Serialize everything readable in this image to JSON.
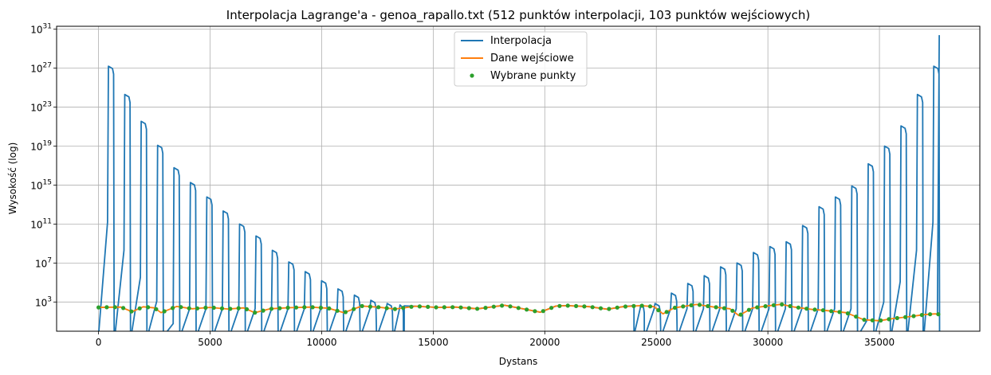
{
  "chart_data": {
    "type": "line",
    "title": "Interpolacja Lagrange'a - genoa_rapallo.txt (512 punktów interpolacji, 103 punktów wejściowych)",
    "xlabel": "Dystans",
    "ylabel": "Wysokość (log)",
    "y_scale": "log",
    "xlim": [
      -1880,
      39500
    ],
    "ylim": [
      1,
      2e+31
    ],
    "x_ticks": [
      0,
      5000,
      10000,
      15000,
      20000,
      25000,
      30000,
      35000
    ],
    "y_ticks": [
      {
        "value": 1000,
        "base": "10",
        "exp": "3"
      },
      {
        "value": 10000000.0,
        "base": "10",
        "exp": "7"
      },
      {
        "value": 100000000000.0,
        "base": "10",
        "exp": "11"
      },
      {
        "value": 1000000000000000.0,
        "base": "10",
        "exp": "15"
      },
      {
        "value": 1e+19,
        "base": "10",
        "exp": "19"
      },
      {
        "value": 1e+23,
        "base": "10",
        "exp": "23"
      },
      {
        "value": 1e+27,
        "base": "10",
        "exp": "27"
      },
      {
        "value": 1e+31,
        "base": "10",
        "exp": "31"
      }
    ],
    "grid": true,
    "legend_position": "top-center",
    "interpolation_lobes": [
      {
        "x0": 0,
        "x1": 735,
        "peak": 1.6e+27
      },
      {
        "x0": 735,
        "x1": 1470,
        "peak": 2e+24
      },
      {
        "x0": 1470,
        "x1": 2205,
        "peak": 3.5e+21
      },
      {
        "x0": 2205,
        "x1": 2940,
        "peak": 1.2e+19
      },
      {
        "x0": 2940,
        "x1": 3675,
        "peak": 6e+16
      },
      {
        "x0": 3675,
        "x1": 4410,
        "peak": 1800000000000000.0
      },
      {
        "x0": 4410,
        "x1": 5145,
        "peak": 60000000000000.0
      },
      {
        "x0": 5145,
        "x1": 5880,
        "peak": 2200000000000.0
      },
      {
        "x0": 5880,
        "x1": 6615,
        "peak": 100000000000.0
      },
      {
        "x0": 6615,
        "x1": 7350,
        "peak": 6000000000.0
      },
      {
        "x0": 7350,
        "x1": 8085,
        "peak": 200000000.0
      },
      {
        "x0": 8085,
        "x1": 8820,
        "peak": 13000000.0
      },
      {
        "x0": 8820,
        "x1": 9555,
        "peak": 1300000.0
      },
      {
        "x0": 9555,
        "x1": 10290,
        "peak": 150000.0
      },
      {
        "x0": 10290,
        "x1": 11025,
        "peak": 22000.0
      },
      {
        "x0": 11025,
        "x1": 11760,
        "peak": 5000
      },
      {
        "x0": 11760,
        "x1": 12495,
        "peak": 1500
      },
      {
        "x0": 12495,
        "x1": 13230,
        "peak": 700
      },
      {
        "x0": 13230,
        "x1": 13700,
        "peak": 500
      },
      {
        "x0": 24000,
        "x1": 24500,
        "peak": 500
      },
      {
        "x0": 24500,
        "x1": 25235,
        "peak": 700
      },
      {
        "x0": 25235,
        "x1": 25970,
        "peak": 8000
      },
      {
        "x0": 25970,
        "x1": 26705,
        "peak": 80000.0
      },
      {
        "x0": 26705,
        "x1": 27440,
        "peak": 500000.0
      },
      {
        "x0": 27440,
        "x1": 28175,
        "peak": 4000000.0
      },
      {
        "x0": 28175,
        "x1": 28910,
        "peak": 10000000.0
      },
      {
        "x0": 28910,
        "x1": 29645,
        "peak": 120000000.0
      },
      {
        "x0": 29645,
        "x1": 30380,
        "peak": 500000000.0
      },
      {
        "x0": 30380,
        "x1": 31115,
        "peak": 1500000000.0
      },
      {
        "x0": 31115,
        "x1": 31850,
        "peak": 70000000000.0
      },
      {
        "x0": 31850,
        "x1": 32585,
        "peak": 6000000000000.0
      },
      {
        "x0": 32585,
        "x1": 33320,
        "peak": 60000000000000.0
      },
      {
        "x0": 33320,
        "x1": 34055,
        "peak": 800000000000000.0
      },
      {
        "x0": 34055,
        "x1": 34790,
        "peak": 1.5e+17
      },
      {
        "x0": 34790,
        "x1": 35525,
        "peak": 1e+19
      },
      {
        "x0": 35525,
        "x1": 36260,
        "peak": 1.2e+21
      },
      {
        "x0": 36260,
        "x1": 36995,
        "peak": 2e+24
      },
      {
        "x0": 36995,
        "x1": 37730,
        "peak": 1.6e+27
      }
    ],
    "interpolation_end": {
      "x": 37680,
      "y": 2.5e+30
    },
    "input_profile": [
      [
        0,
        280
      ],
      [
        1000,
        300
      ],
      [
        1500,
        100
      ],
      [
        2000,
        320
      ],
      [
        2500,
        250
      ],
      [
        2800,
        80
      ],
      [
        3500,
        350
      ],
      [
        4200,
        200
      ],
      [
        5000,
        280
      ],
      [
        5800,
        190
      ],
      [
        6500,
        250
      ],
      [
        7000,
        80
      ],
      [
        7700,
        200
      ],
      [
        8500,
        260
      ],
      [
        9500,
        300
      ],
      [
        10300,
        230
      ],
      [
        11000,
        80
      ],
      [
        11800,
        380
      ],
      [
        12500,
        300
      ],
      [
        13300,
        190
      ],
      [
        14200,
        370
      ],
      [
        15200,
        280
      ],
      [
        16000,
        300
      ],
      [
        17000,
        200
      ],
      [
        18200,
        460
      ],
      [
        19000,
        200
      ],
      [
        19800,
        90
      ],
      [
        20500,
        380
      ],
      [
        21000,
        420
      ],
      [
        22000,
        330
      ],
      [
        22800,
        180
      ],
      [
        23500,
        330
      ],
      [
        24300,
        420
      ],
      [
        24900,
        330
      ],
      [
        25300,
        60
      ],
      [
        25800,
        250
      ],
      [
        26800,
        560
      ],
      [
        27600,
        300
      ],
      [
        28300,
        200
      ],
      [
        28700,
        40
      ],
      [
        29300,
        240
      ],
      [
        30000,
        400
      ],
      [
        30600,
        580
      ],
      [
        31200,
        300
      ],
      [
        32000,
        170
      ],
      [
        32500,
        140
      ],
      [
        33500,
        80
      ],
      [
        34300,
        15
      ],
      [
        35000,
        12
      ],
      [
        35600,
        20
      ],
      [
        36300,
        30
      ],
      [
        37000,
        50
      ],
      [
        37500,
        60
      ],
      [
        37640,
        55
      ]
    ],
    "selected_points_count": 103,
    "series": [
      {
        "name": "Interpolacja",
        "color": "#1f77b4",
        "style": "line"
      },
      {
        "name": "Dane wejściowe",
        "color": "#ff7f0e",
        "style": "line"
      },
      {
        "name": "Wybrane punkty",
        "color": "#2ca02c",
        "style": "marker"
      }
    ]
  }
}
